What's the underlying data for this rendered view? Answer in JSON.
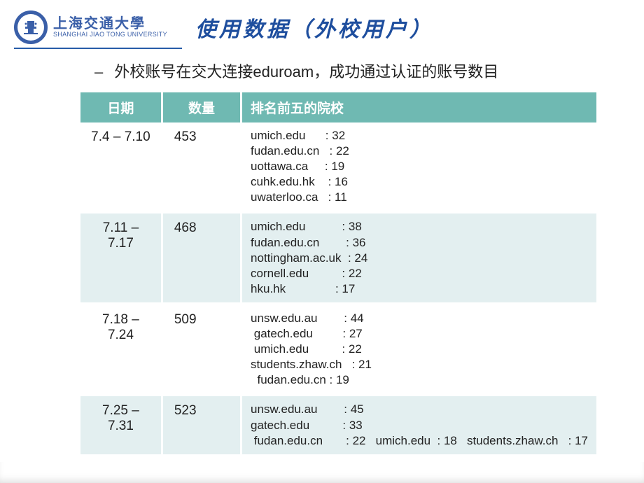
{
  "header": {
    "uni_cn": "上海交通大學",
    "uni_en": "SHANGHAI JIAO TONG UNIVERSITY",
    "title": "使用数据（外校用户）"
  },
  "subtitle": {
    "dash": "–",
    "text": "外校账号在交大连接eduroam，成功通过认证的账号数目"
  },
  "table": {
    "headers": [
      "日期",
      "数量",
      "排名前五的院校"
    ],
    "rows": [
      {
        "date": "7.4 – 7.10",
        "count": "453",
        "schools": "umich.edu      : 32\nfudan.edu.cn   : 22\nuottawa.ca     : 19\ncuhk.edu.hk    : 16\nuwaterloo.ca   : 11"
      },
      {
        "date": "7.11 – 7.17",
        "count": "468",
        "schools": "umich.edu           : 38\nfudan.edu.cn        : 36\nnottingham.ac.uk  : 24\ncornell.edu          : 22\nhku.hk               : 17"
      },
      {
        "date": "7.18 – 7.24",
        "count": "509",
        "schools": "unsw.edu.au        : 44\n gatech.edu         : 27\n umich.edu          : 22\nstudents.zhaw.ch   : 21\n  fudan.edu.cn : 19"
      },
      {
        "date": "7.25 – 7.31",
        "count": "523",
        "schools": "unsw.edu.au        : 45\ngatech.edu          : 33\n fudan.edu.cn       : 22   umich.edu  : 18   students.zhaw.ch   : 17"
      }
    ]
  },
  "colors": {
    "brand_blue": "#3a5fa8",
    "title_blue": "#1e4e9e",
    "header_bg": "#6fb9b2",
    "row_alt": "#e3eff0",
    "text": "#222222",
    "white": "#ffffff"
  }
}
